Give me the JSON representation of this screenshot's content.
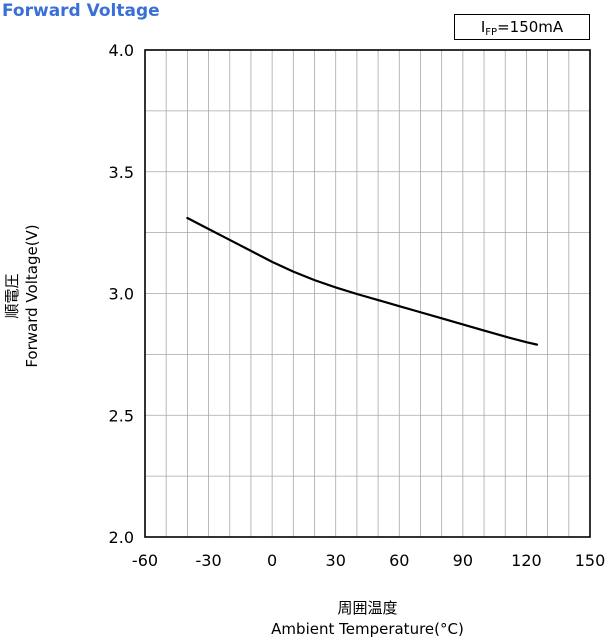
{
  "chart_data": {
    "type": "line",
    "title": "Forward Voltage",
    "condition": {
      "prefix": "I",
      "subscript": "FP",
      "value": "=150mA"
    },
    "xlabel_jp": "周囲温度",
    "xlabel": "Ambient Temperature(°C)",
    "ylabel_jp": "順電圧",
    "ylabel": "Forward Voltage(V)",
    "xlim": [
      -60,
      150
    ],
    "ylim": [
      2.0,
      4.0
    ],
    "x_ticks": [
      "-60",
      "-30",
      "0",
      "30",
      "60",
      "90",
      "120",
      "150"
    ],
    "y_ticks": [
      "2.0",
      "2.5",
      "3.0",
      "3.5",
      "4.0"
    ],
    "grid": true,
    "series": [
      {
        "color": "#000000",
        "x": [
          -40,
          -30,
          -20,
          -10,
          0,
          10,
          20,
          30,
          40,
          50,
          60,
          70,
          80,
          90,
          100,
          110,
          120,
          125
        ],
        "y": [
          3.31,
          3.265,
          3.22,
          3.175,
          3.13,
          3.09,
          3.055,
          3.025,
          2.998,
          2.973,
          2.948,
          2.923,
          2.898,
          2.873,
          2.848,
          2.823,
          2.8,
          2.79
        ]
      }
    ]
  }
}
